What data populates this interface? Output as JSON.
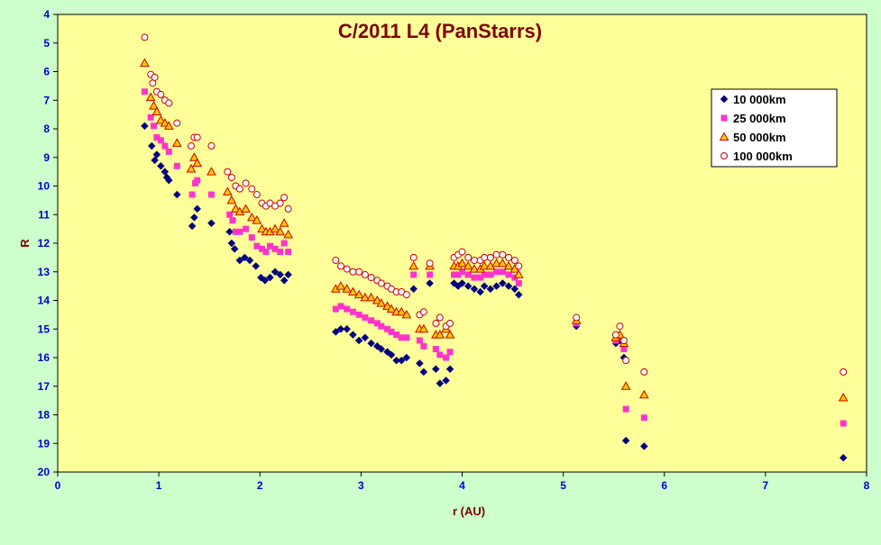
{
  "chart_data": {
    "type": "scatter",
    "title": "C/2011 L4 (PanStarrs)",
    "xlabel": "r (AU)",
    "ylabel": "R",
    "xlim": [
      0,
      8
    ],
    "ylim": [
      4,
      20
    ],
    "y_inverted": true,
    "x_ticks": [
      "0",
      "1",
      "2",
      "3",
      "4",
      "5",
      "6",
      "7",
      "8"
    ],
    "y_ticks": [
      "4",
      "5",
      "6",
      "7",
      "8",
      "9",
      "10",
      "11",
      "12",
      "13",
      "14",
      "15",
      "16",
      "17",
      "18",
      "19",
      "20"
    ],
    "grid": false,
    "legend_position": "top-right",
    "colors": {
      "figure_background": "#ccffcc",
      "plot_background": "#ffff99",
      "title": "#800000",
      "axis_labels": "#800000",
      "tick_labels": "#0000cc"
    },
    "series": [
      {
        "name": "10 000km",
        "marker": "diamond",
        "color": "#000080",
        "points": [
          [
            0.86,
            7.9
          ],
          [
            0.93,
            8.6
          ],
          [
            0.96,
            9.1
          ],
          [
            0.98,
            8.9
          ],
          [
            1.02,
            9.3
          ],
          [
            1.06,
            9.5
          ],
          [
            1.08,
            9.7
          ],
          [
            1.1,
            9.8
          ],
          [
            1.18,
            10.3
          ],
          [
            1.33,
            11.4
          ],
          [
            1.35,
            11.1
          ],
          [
            1.38,
            10.8
          ],
          [
            1.52,
            11.3
          ],
          [
            1.7,
            11.6
          ],
          [
            1.72,
            12.0
          ],
          [
            1.75,
            12.2
          ],
          [
            1.8,
            12.6
          ],
          [
            1.85,
            12.5
          ],
          [
            1.9,
            12.6
          ],
          [
            1.96,
            12.8
          ],
          [
            2.01,
            13.2
          ],
          [
            2.05,
            13.3
          ],
          [
            2.1,
            13.2
          ],
          [
            2.15,
            13.0
          ],
          [
            2.2,
            13.1
          ],
          [
            2.24,
            13.3
          ],
          [
            2.28,
            13.1
          ],
          [
            2.75,
            15.1
          ],
          [
            2.8,
            15.0
          ],
          [
            2.86,
            15.0
          ],
          [
            2.92,
            15.2
          ],
          [
            2.98,
            15.4
          ],
          [
            3.04,
            15.3
          ],
          [
            3.1,
            15.5
          ],
          [
            3.16,
            15.6
          ],
          [
            3.2,
            15.7
          ],
          [
            3.26,
            15.8
          ],
          [
            3.3,
            15.9
          ],
          [
            3.35,
            16.1
          ],
          [
            3.4,
            16.1
          ],
          [
            3.45,
            16.0
          ],
          [
            3.52,
            13.6
          ],
          [
            3.58,
            16.2
          ],
          [
            3.62,
            16.5
          ],
          [
            3.68,
            13.4
          ],
          [
            3.74,
            16.4
          ],
          [
            3.78,
            16.9
          ],
          [
            3.84,
            16.8
          ],
          [
            3.88,
            16.4
          ],
          [
            3.92,
            13.4
          ],
          [
            3.96,
            13.5
          ],
          [
            4.0,
            13.4
          ],
          [
            4.06,
            13.5
          ],
          [
            4.12,
            13.6
          ],
          [
            4.18,
            13.7
          ],
          [
            4.22,
            13.5
          ],
          [
            4.28,
            13.6
          ],
          [
            4.34,
            13.5
          ],
          [
            4.4,
            13.4
          ],
          [
            4.46,
            13.5
          ],
          [
            4.52,
            13.6
          ],
          [
            4.56,
            13.8
          ],
          [
            5.13,
            14.9
          ],
          [
            5.52,
            15.5
          ],
          [
            5.56,
            15.4
          ],
          [
            5.6,
            16.0
          ],
          [
            5.62,
            18.9
          ],
          [
            5.8,
            19.1
          ],
          [
            7.77,
            19.5
          ]
        ]
      },
      {
        "name": "25 000km",
        "marker": "square",
        "color": "#ff33cc",
        "points": [
          [
            0.86,
            6.7
          ],
          [
            0.92,
            7.6
          ],
          [
            0.95,
            7.9
          ],
          [
            0.98,
            8.3
          ],
          [
            1.02,
            8.4
          ],
          [
            1.06,
            8.6
          ],
          [
            1.1,
            8.8
          ],
          [
            1.18,
            9.3
          ],
          [
            1.33,
            10.3
          ],
          [
            1.36,
            9.9
          ],
          [
            1.38,
            9.8
          ],
          [
            1.52,
            10.3
          ],
          [
            1.7,
            11.0
          ],
          [
            1.73,
            11.2
          ],
          [
            1.76,
            11.6
          ],
          [
            1.8,
            11.6
          ],
          [
            1.86,
            11.5
          ],
          [
            1.92,
            11.8
          ],
          [
            1.97,
            12.1
          ],
          [
            2.02,
            12.2
          ],
          [
            2.06,
            12.3
          ],
          [
            2.1,
            12.1
          ],
          [
            2.15,
            12.2
          ],
          [
            2.2,
            12.3
          ],
          [
            2.24,
            12.0
          ],
          [
            2.28,
            12.3
          ],
          [
            2.75,
            14.3
          ],
          [
            2.8,
            14.2
          ],
          [
            2.86,
            14.3
          ],
          [
            2.92,
            14.4
          ],
          [
            2.98,
            14.5
          ],
          [
            3.04,
            14.6
          ],
          [
            3.1,
            14.7
          ],
          [
            3.16,
            14.8
          ],
          [
            3.2,
            14.9
          ],
          [
            3.26,
            15.0
          ],
          [
            3.3,
            15.1
          ],
          [
            3.35,
            15.2
          ],
          [
            3.4,
            15.3
          ],
          [
            3.45,
            15.3
          ],
          [
            3.52,
            13.1
          ],
          [
            3.58,
            15.4
          ],
          [
            3.62,
            15.6
          ],
          [
            3.68,
            13.1
          ],
          [
            3.74,
            15.7
          ],
          [
            3.78,
            15.9
          ],
          [
            3.84,
            16.0
          ],
          [
            3.88,
            15.8
          ],
          [
            3.92,
            13.1
          ],
          [
            3.96,
            13.1
          ],
          [
            4.0,
            13.0
          ],
          [
            4.06,
            13.1
          ],
          [
            4.12,
            13.2
          ],
          [
            4.18,
            13.2
          ],
          [
            4.22,
            13.1
          ],
          [
            4.28,
            13.1
          ],
          [
            4.34,
            13.0
          ],
          [
            4.4,
            13.0
          ],
          [
            4.46,
            13.1
          ],
          [
            4.52,
            13.2
          ],
          [
            4.56,
            13.4
          ],
          [
            5.13,
            14.8
          ],
          [
            5.52,
            15.4
          ],
          [
            5.56,
            15.3
          ],
          [
            5.6,
            15.7
          ],
          [
            5.62,
            17.8
          ],
          [
            5.8,
            18.1
          ],
          [
            7.77,
            18.3
          ]
        ]
      },
      {
        "name": "50 000km",
        "marker": "triangle",
        "color": "#ffcc00",
        "stroke": "#cc0000",
        "points": [
          [
            0.86,
            5.7
          ],
          [
            0.92,
            6.9
          ],
          [
            0.95,
            7.2
          ],
          [
            0.98,
            7.4
          ],
          [
            1.02,
            7.7
          ],
          [
            1.06,
            7.8
          ],
          [
            1.1,
            7.9
          ],
          [
            1.18,
            8.5
          ],
          [
            1.32,
            9.4
          ],
          [
            1.35,
            9.0
          ],
          [
            1.38,
            9.2
          ],
          [
            1.52,
            9.5
          ],
          [
            1.68,
            10.2
          ],
          [
            1.72,
            10.5
          ],
          [
            1.76,
            10.8
          ],
          [
            1.8,
            10.9
          ],
          [
            1.86,
            10.8
          ],
          [
            1.92,
            11.1
          ],
          [
            1.97,
            11.2
          ],
          [
            2.02,
            11.5
          ],
          [
            2.06,
            11.6
          ],
          [
            2.1,
            11.6
          ],
          [
            2.15,
            11.5
          ],
          [
            2.2,
            11.6
          ],
          [
            2.24,
            11.3
          ],
          [
            2.28,
            11.7
          ],
          [
            2.75,
            13.6
          ],
          [
            2.8,
            13.5
          ],
          [
            2.86,
            13.6
          ],
          [
            2.92,
            13.7
          ],
          [
            2.98,
            13.8
          ],
          [
            3.04,
            13.9
          ],
          [
            3.1,
            13.9
          ],
          [
            3.16,
            14.0
          ],
          [
            3.2,
            14.1
          ],
          [
            3.26,
            14.2
          ],
          [
            3.3,
            14.3
          ],
          [
            3.35,
            14.4
          ],
          [
            3.4,
            14.4
          ],
          [
            3.45,
            14.5
          ],
          [
            3.52,
            12.8
          ],
          [
            3.58,
            15.0
          ],
          [
            3.62,
            15.0
          ],
          [
            3.68,
            12.8
          ],
          [
            3.74,
            15.2
          ],
          [
            3.78,
            15.2
          ],
          [
            3.84,
            15.0
          ],
          [
            3.88,
            15.2
          ],
          [
            3.92,
            12.8
          ],
          [
            3.96,
            12.8
          ],
          [
            4.0,
            12.7
          ],
          [
            4.06,
            12.8
          ],
          [
            4.12,
            12.9
          ],
          [
            4.18,
            12.9
          ],
          [
            4.22,
            12.8
          ],
          [
            4.28,
            12.8
          ],
          [
            4.34,
            12.7
          ],
          [
            4.4,
            12.7
          ],
          [
            4.46,
            12.8
          ],
          [
            4.52,
            12.9
          ],
          [
            4.56,
            13.1
          ],
          [
            5.13,
            14.7
          ],
          [
            5.52,
            15.3
          ],
          [
            5.56,
            15.2
          ],
          [
            5.6,
            15.5
          ],
          [
            5.62,
            17.0
          ],
          [
            5.8,
            17.3
          ],
          [
            7.77,
            17.4
          ]
        ]
      },
      {
        "name": "100 000km",
        "marker": "circle-open",
        "color": "#ffffff",
        "stroke": "#cc0000",
        "points": [
          [
            0.86,
            4.8
          ],
          [
            0.92,
            6.1
          ],
          [
            0.94,
            6.4
          ],
          [
            0.96,
            6.2
          ],
          [
            0.98,
            6.7
          ],
          [
            1.02,
            6.8
          ],
          [
            1.06,
            7.0
          ],
          [
            1.1,
            7.1
          ],
          [
            1.18,
            7.8
          ],
          [
            1.32,
            8.6
          ],
          [
            1.35,
            8.3
          ],
          [
            1.38,
            8.3
          ],
          [
            1.52,
            8.6
          ],
          [
            1.68,
            9.5
          ],
          [
            1.72,
            9.7
          ],
          [
            1.76,
            10.0
          ],
          [
            1.8,
            10.1
          ],
          [
            1.86,
            9.9
          ],
          [
            1.92,
            10.1
          ],
          [
            1.97,
            10.3
          ],
          [
            2.02,
            10.6
          ],
          [
            2.06,
            10.7
          ],
          [
            2.1,
            10.6
          ],
          [
            2.15,
            10.7
          ],
          [
            2.2,
            10.6
          ],
          [
            2.24,
            10.4
          ],
          [
            2.28,
            10.8
          ],
          [
            2.75,
            12.6
          ],
          [
            2.8,
            12.8
          ],
          [
            2.86,
            12.9
          ],
          [
            2.92,
            13.0
          ],
          [
            2.98,
            13.0
          ],
          [
            3.04,
            13.1
          ],
          [
            3.1,
            13.2
          ],
          [
            3.16,
            13.3
          ],
          [
            3.2,
            13.4
          ],
          [
            3.26,
            13.5
          ],
          [
            3.3,
            13.6
          ],
          [
            3.35,
            13.7
          ],
          [
            3.4,
            13.7
          ],
          [
            3.45,
            13.8
          ],
          [
            3.52,
            12.5
          ],
          [
            3.58,
            14.5
          ],
          [
            3.62,
            14.4
          ],
          [
            3.68,
            12.7
          ],
          [
            3.74,
            14.8
          ],
          [
            3.78,
            14.6
          ],
          [
            3.84,
            14.9
          ],
          [
            3.88,
            14.8
          ],
          [
            3.92,
            12.5
          ],
          [
            3.96,
            12.4
          ],
          [
            4.0,
            12.3
          ],
          [
            4.06,
            12.5
          ],
          [
            4.12,
            12.6
          ],
          [
            4.18,
            12.6
          ],
          [
            4.22,
            12.5
          ],
          [
            4.28,
            12.5
          ],
          [
            4.34,
            12.4
          ],
          [
            4.4,
            12.4
          ],
          [
            4.46,
            12.5
          ],
          [
            4.52,
            12.6
          ],
          [
            4.56,
            12.8
          ],
          [
            5.13,
            14.6
          ],
          [
            5.52,
            15.2
          ],
          [
            5.56,
            14.9
          ],
          [
            5.6,
            15.4
          ],
          [
            5.62,
            16.1
          ],
          [
            5.8,
            16.5
          ],
          [
            7.77,
            16.5
          ]
        ]
      }
    ]
  }
}
